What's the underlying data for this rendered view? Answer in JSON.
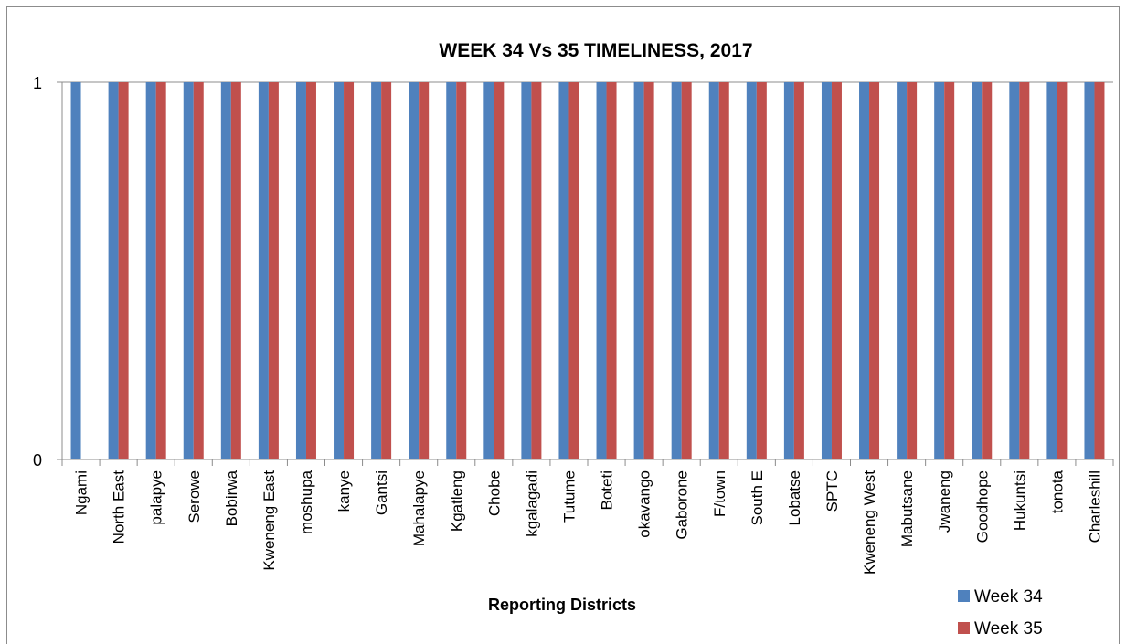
{
  "chart_data": {
    "type": "bar",
    "title": "WEEK 34 Vs 35 TIMELINESS, 2017",
    "xlabel": "Reporting Districts",
    "ylabel": "",
    "ylim": [
      0,
      1
    ],
    "yticks": [
      "0",
      "1"
    ],
    "grid": true,
    "legend_position": "bottom-right",
    "categories": [
      "Ngami",
      "North East",
      "palapye",
      "Serowe",
      "Bobirwa",
      "Kweneng East",
      "moshupa",
      "kanye",
      "Gantsi",
      "Mahalapye",
      "Kgatleng",
      "Chobe",
      "kgalagadi",
      "Tutume",
      "Boteti",
      "okavango",
      "Gaborone",
      "F/town",
      "South E",
      "Lobatse",
      "SPTC",
      "Kweneng West",
      "Mabutsane",
      "Jwaneng",
      "Goodhope",
      "Hukuntsi",
      "tonota",
      "Charleshill"
    ],
    "series": [
      {
        "name": "Week 34",
        "color": "#4f81bd",
        "values": [
          1,
          1,
          1,
          1,
          1,
          1,
          1,
          1,
          1,
          1,
          1,
          1,
          1,
          1,
          1,
          1,
          1,
          1,
          1,
          1,
          1,
          1,
          1,
          1,
          1,
          1,
          1,
          1
        ]
      },
      {
        "name": "Week 35",
        "color": "#c0504d",
        "values": [
          0,
          1,
          1,
          1,
          1,
          1,
          1,
          1,
          1,
          1,
          1,
          1,
          1,
          1,
          1,
          1,
          1,
          1,
          1,
          1,
          1,
          1,
          1,
          1,
          1,
          1,
          1,
          1
        ]
      }
    ]
  }
}
